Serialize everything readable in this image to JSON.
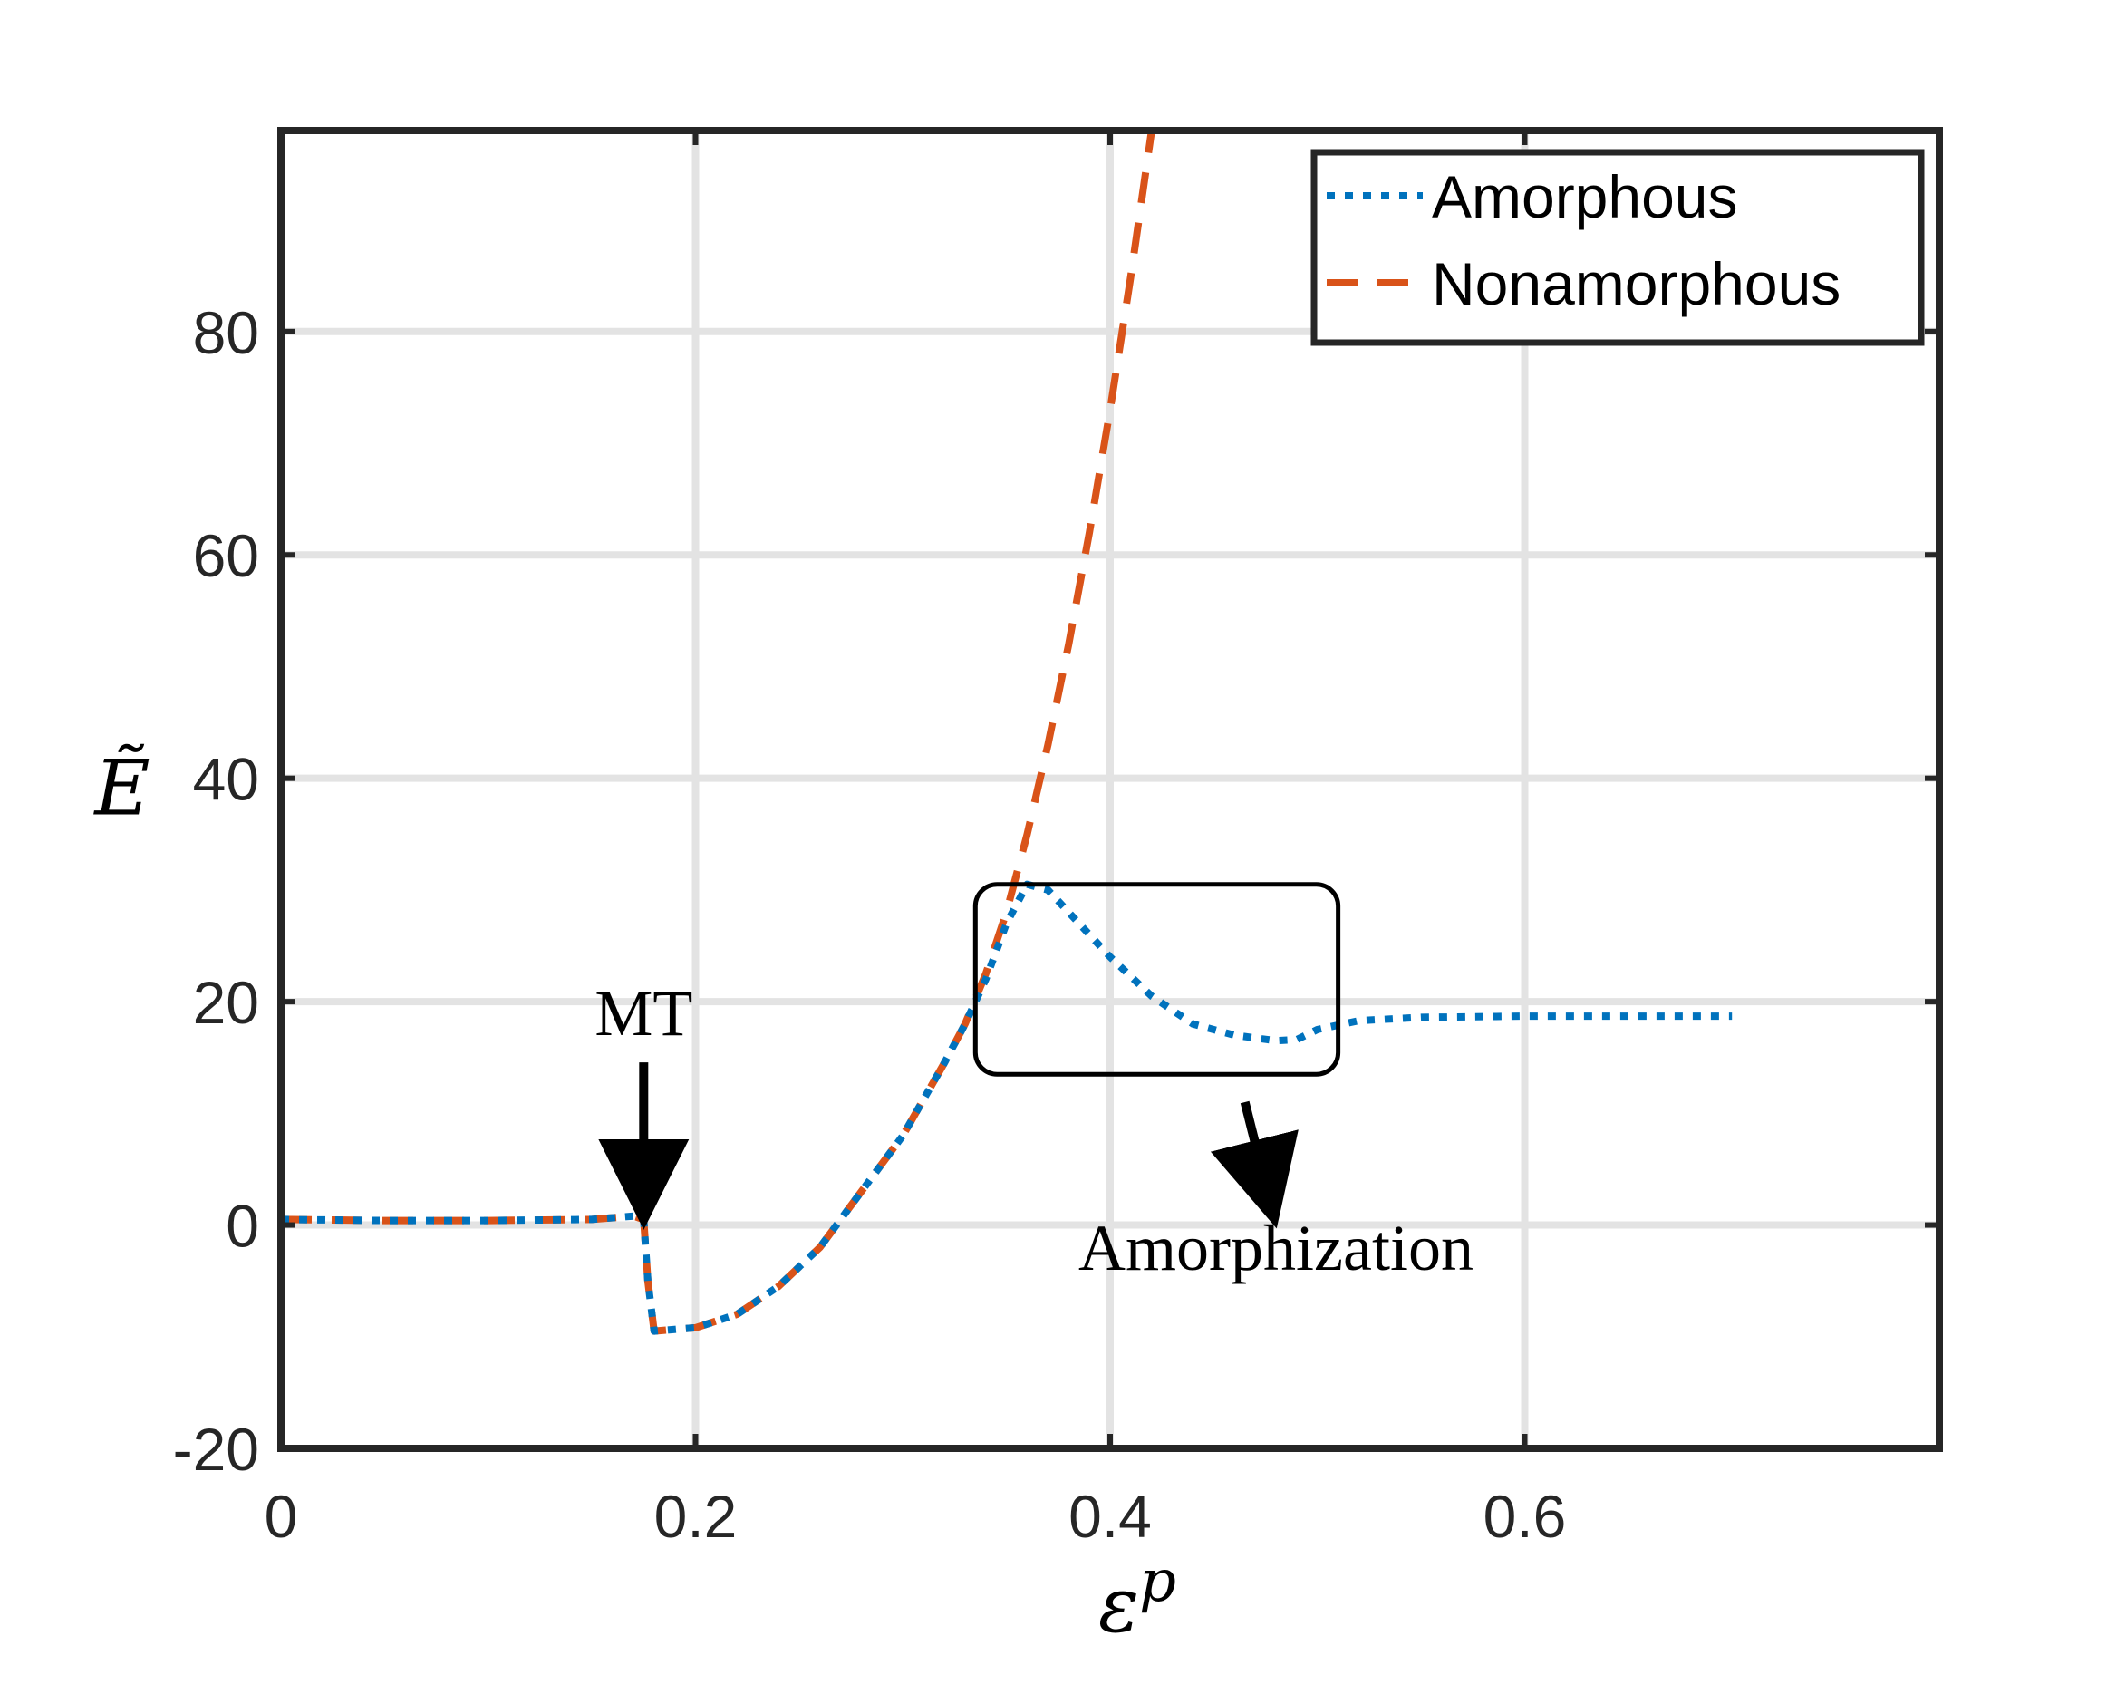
{
  "chart_data": {
    "type": "line",
    "title": "",
    "xlabel": "ε^p",
    "xlabel_base": "ε",
    "xlabel_sup": "p",
    "ylabel": "Ẽ",
    "xlim": [
      0,
      0.8
    ],
    "ylim": [
      -20,
      98
    ],
    "xticks": [
      0,
      0.2,
      0.4,
      0.6
    ],
    "xtick_labels": [
      "0",
      "0.2",
      "0.4",
      "0.6"
    ],
    "yticks": [
      -20,
      0,
      20,
      40,
      60,
      80
    ],
    "ytick_labels": [
      "-20",
      "0",
      "20",
      "40",
      "60",
      "80"
    ],
    "grid": true,
    "legend_position": "top-right",
    "series": [
      {
        "name": "Amorphous",
        "color": "#0072BD",
        "line_style": "dotted",
        "x": [
          0,
          0.05,
          0.1,
          0.15,
          0.17,
          0.175,
          0.177,
          0.18,
          0.2,
          0.22,
          0.24,
          0.26,
          0.28,
          0.3,
          0.32,
          0.33,
          0.34,
          0.35,
          0.36,
          0.37,
          0.38,
          0.4,
          0.42,
          0.44,
          0.46,
          0.48,
          0.49,
          0.5,
          0.52,
          0.55,
          0.6,
          0.65,
          0.7
        ],
        "y": [
          0.5,
          0.4,
          0.4,
          0.5,
          0.8,
          0.5,
          -5,
          -9.5,
          -9.2,
          -8,
          -5.5,
          -2,
          3,
          8,
          14.5,
          18,
          22,
          27,
          30.5,
          30,
          28,
          24,
          20.5,
          18,
          17,
          16.5,
          16.6,
          17.5,
          18.3,
          18.6,
          18.7,
          18.7,
          18.7
        ]
      },
      {
        "name": "Nonamorphous",
        "color": "#D95319",
        "line_style": "dashed",
        "x": [
          0,
          0.05,
          0.1,
          0.15,
          0.17,
          0.175,
          0.177,
          0.18,
          0.2,
          0.22,
          0.24,
          0.26,
          0.28,
          0.3,
          0.32,
          0.33,
          0.34,
          0.35,
          0.36,
          0.37,
          0.38,
          0.39,
          0.4,
          0.41,
          0.42
        ],
        "y": [
          0.5,
          0.4,
          0.4,
          0.5,
          0.8,
          0.5,
          -5,
          -9.5,
          -9.2,
          -8,
          -5.5,
          -2,
          3,
          8,
          14.5,
          18,
          22.5,
          28,
          35,
          43,
          52,
          62,
          73,
          85,
          98
        ]
      }
    ],
    "annotations": [
      {
        "text": "MT",
        "x": 0.175,
        "y": 17,
        "arrow_to": [
          0.175,
          2
        ]
      },
      {
        "text": "Amorphization",
        "x": 0.48,
        "y": -4,
        "arrow_from": [
          0.465,
          11
        ],
        "arrow_to": [
          0.475,
          2
        ]
      }
    ],
    "highlight_box": {
      "x0": 0.335,
      "x1": 0.51,
      "y0": 13.5,
      "y1": 30.5
    }
  }
}
